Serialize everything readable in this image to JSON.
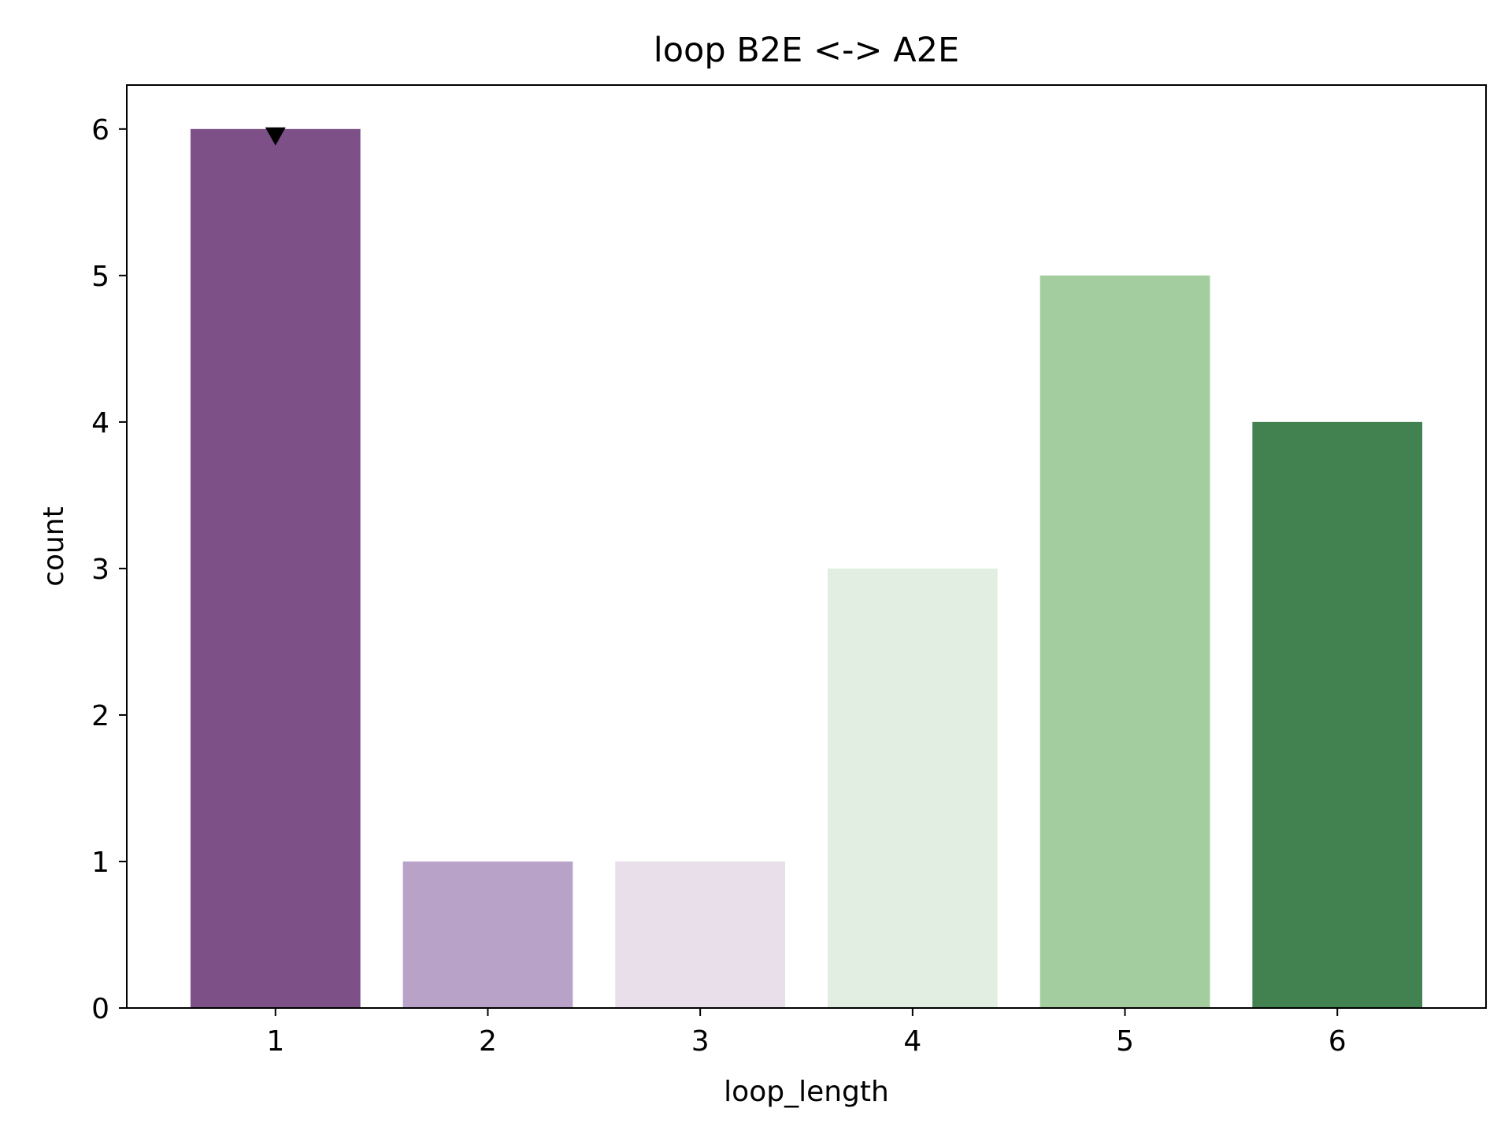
{
  "chart_data": {
    "type": "bar",
    "title": "loop B2E <-> A2E",
    "xlabel": "loop_length",
    "ylabel": "count",
    "categories": [
      "1",
      "2",
      "3",
      "4",
      "5",
      "6"
    ],
    "values": [
      6,
      1,
      1,
      3,
      5,
      4
    ],
    "colors": [
      "#7e5088",
      "#b9a2c7",
      "#e9dfeb",
      "#e2eee2",
      "#a3cd9e",
      "#418250"
    ],
    "ylim": [
      0,
      6.3
    ],
    "yticks": [
      "0",
      "1",
      "2",
      "3",
      "4",
      "5",
      "6"
    ],
    "grid": false,
    "legend": "none",
    "markers": [
      {
        "category": "1",
        "value": 6,
        "shape": "triangle-down",
        "color": "#000000"
      }
    ]
  }
}
